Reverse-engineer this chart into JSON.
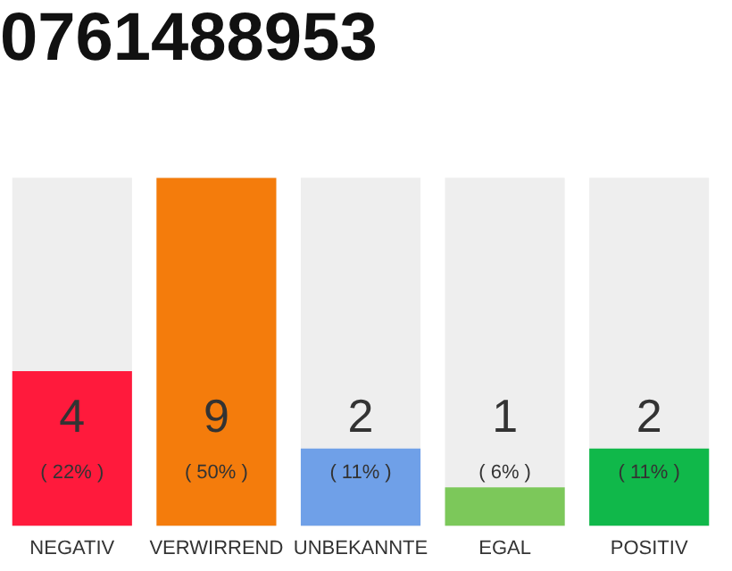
{
  "chart_data": {
    "type": "bar",
    "title": "0761488953",
    "categories": [
      "NEGATIV",
      "VERWIRREND",
      "UNBEKANNTE",
      "EGAL",
      "POSITIV"
    ],
    "values": [
      4,
      9,
      2,
      1,
      2
    ],
    "colors": [
      "#ff1a3c",
      "#f47c0c",
      "#6fa0e8",
      "#7cc85a",
      "#10b84a"
    ],
    "ylim": [
      0,
      9
    ],
    "tick_labels": "x",
    "grid": false,
    "legend": false,
    "data_labels": true,
    "annotations": [
      "( 22% )",
      "( 50% )",
      "( 11% )",
      "( 6% )",
      "( 11% )"
    ]
  }
}
